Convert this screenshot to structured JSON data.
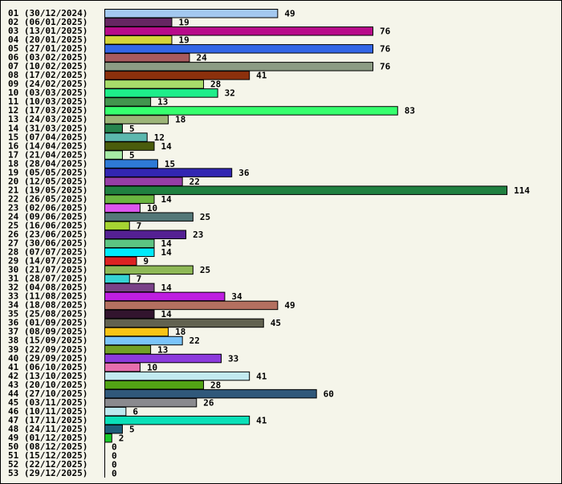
{
  "chart_data": {
    "type": "bar",
    "orientation": "horizontal",
    "title": "",
    "xlabel": "",
    "ylabel": "",
    "xlim": [
      0,
      114
    ],
    "grid": false,
    "categories": [
      "01 (30/12/2024)",
      "02 (06/01/2025)",
      "03 (13/01/2025)",
      "04 (20/01/2025)",
      "05 (27/01/2025)",
      "06 (03/02/2025)",
      "07 (10/02/2025)",
      "08 (17/02/2025)",
      "09 (24/02/2025)",
      "10 (03/03/2025)",
      "11 (10/03/2025)",
      "12 (17/03/2025)",
      "13 (24/03/2025)",
      "14 (31/03/2025)",
      "15 (07/04/2025)",
      "16 (14/04/2025)",
      "17 (21/04/2025)",
      "18 (28/04/2025)",
      "19 (05/05/2025)",
      "20 (12/05/2025)",
      "21 (19/05/2025)",
      "22 (26/05/2025)",
      "23 (02/06/2025)",
      "24 (09/06/2025)",
      "25 (16/06/2025)",
      "26 (23/06/2025)",
      "27 (30/06/2025)",
      "28 (07/07/2025)",
      "29 (14/07/2025)",
      "30 (21/07/2025)",
      "31 (28/07/2025)",
      "32 (04/08/2025)",
      "33 (11/08/2025)",
      "34 (18/08/2025)",
      "35 (25/08/2025)",
      "36 (01/09/2025)",
      "37 (08/09/2025)",
      "38 (15/09/2025)",
      "39 (22/09/2025)",
      "40 (29/09/2025)",
      "41 (06/10/2025)",
      "42 (13/10/2025)",
      "43 (20/10/2025)",
      "44 (27/10/2025)",
      "45 (03/11/2025)",
      "46 (10/11/2025)",
      "47 (17/11/2025)",
      "48 (24/11/2025)",
      "49 (01/12/2025)",
      "50 (08/12/2025)",
      "51 (15/12/2025)",
      "52 (22/12/2025)",
      "53 (29/12/2025)"
    ],
    "values": [
      49,
      19,
      76,
      19,
      76,
      24,
      76,
      41,
      28,
      32,
      13,
      83,
      18,
      5,
      12,
      14,
      5,
      15,
      36,
      22,
      114,
      14,
      10,
      25,
      7,
      23,
      14,
      14,
      9,
      25,
      7,
      14,
      34,
      49,
      14,
      45,
      18,
      22,
      13,
      33,
      10,
      41,
      28,
      60,
      26,
      6,
      41,
      5,
      2,
      0,
      0,
      0,
      0
    ],
    "colors": [
      "#a3c8f0",
      "#662662",
      "#b80a8a",
      "#d4d43a",
      "#3366e6",
      "#a85a5e",
      "#8c9c84",
      "#8c300c",
      "#a8dc6a",
      "#1eee8a",
      "#42964e",
      "#36ff6e",
      "#9cb478",
      "#26844e",
      "#5cb8ae",
      "#4a5c0c",
      "#a6eaa6",
      "#2e7ad6",
      "#3226b2",
      "#963ea6",
      "#208040",
      "#6ab640",
      "#dc56ee",
      "#547878",
      "#a6d432",
      "#542092",
      "#5cc482",
      "#00eafa",
      "#dc2222",
      "#8eb856",
      "#36d4d4",
      "#7a4288",
      "#be1ee0",
      "#b47060",
      "#32142e",
      "#626250",
      "#f8c416",
      "#7ac4fa",
      "#72a026",
      "#8c3adc",
      "#e66eae",
      "#c2eaf0",
      "#52a414",
      "#30587a",
      "#8a8a8e",
      "#bce8ee",
      "#0ae0b8",
      "#1e5e7a",
      "#18c82a",
      "#888888",
      "#888888",
      "#888888",
      "#888888"
    ]
  }
}
